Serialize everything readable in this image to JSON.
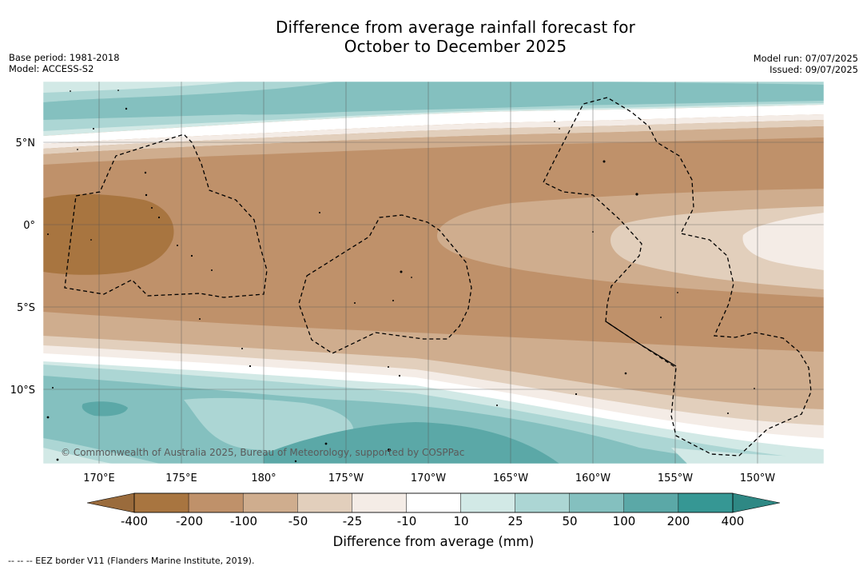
{
  "title": {
    "line1": "Difference from average rainfall forecast for",
    "line2": "October to December 2025"
  },
  "meta": {
    "base_period": "Base period: 1981-2018",
    "model": "Model: ACCESS-S2",
    "model_run": "Model run: 07/07/2025",
    "issued": "Issued: 09/07/2025"
  },
  "map": {
    "lat_labels": [
      "5°N",
      "0°",
      "5°S",
      "10°S"
    ],
    "lon_labels": [
      "170°E",
      "175°E",
      "180°",
      "175°W",
      "170°W",
      "165°W",
      "160°W",
      "155°W",
      "150°W"
    ],
    "copyright": "© Commonwealth of Australia 2025, Bureau of Meteorology, supported by COSPPac",
    "colors": {
      "c_400n": "#a87540",
      "c_200n": "#bf916a",
      "c_100n": "#cfad8e",
      "c_50n": "#e2cfbc",
      "c_25n": "#f4ece6",
      "c_10": "#ffffff",
      "c_25": "#d2e9e6",
      "c_50": "#acd6d4",
      "c_100": "#84c0bf",
      "c_200": "#5ba8a7",
      "c_400": "#369794"
    }
  },
  "colorbar": {
    "labels": [
      "-400",
      "-200",
      "-100",
      "-50",
      "-25",
      "-10",
      "10",
      "25",
      "50",
      "100",
      "200",
      "400"
    ],
    "title": "Difference from average (mm)",
    "colors": [
      "#a87540",
      "#bf916a",
      "#cfad8e",
      "#e2cfbc",
      "#f4ece6",
      "#ffffff",
      "#d2e9e6",
      "#acd6d4",
      "#84c0bf",
      "#5ba8a7",
      "#369794"
    ],
    "under_color": "#9a6b3c",
    "over_color": "#2e8884"
  },
  "legend": {
    "eez_note": "--  --  -- EEZ border V11 (Flanders Marine Institute, 2019)."
  }
}
